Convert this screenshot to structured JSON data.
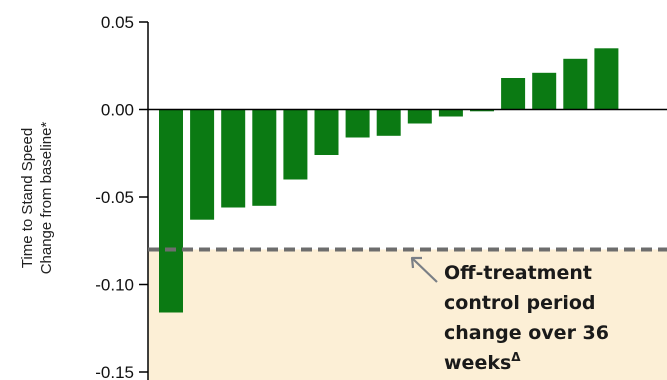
{
  "chart_data": {
    "type": "bar",
    "title": "",
    "xlabel": "",
    "ylabel_lines": [
      "Time to Stand Speed",
      "Change from baseline*"
    ],
    "ylim": [
      -0.15,
      0.05
    ],
    "yticks": [
      0.05,
      0.0,
      -0.05,
      -0.1,
      -0.15
    ],
    "ytick_labels": [
      "0.05",
      "0.00",
      "-0.05",
      "-0.10",
      "-0.15"
    ],
    "grid": false,
    "values": [
      -0.116,
      -0.063,
      -0.056,
      -0.055,
      -0.04,
      -0.026,
      -0.016,
      -0.015,
      -0.008,
      -0.004,
      -0.001,
      0.018,
      0.021,
      0.029,
      0.035
    ],
    "bar_color": "#0b7a13",
    "reference_line": {
      "value": -0.08,
      "style": "dashed",
      "color": "#6d6d6d",
      "shade_below_color": "#fcefd6"
    },
    "annotation": {
      "lines": [
        "Off-treatment",
        "control period",
        "change over 36"
      ],
      "last_line": "weeks",
      "superscript": "Δ"
    }
  }
}
